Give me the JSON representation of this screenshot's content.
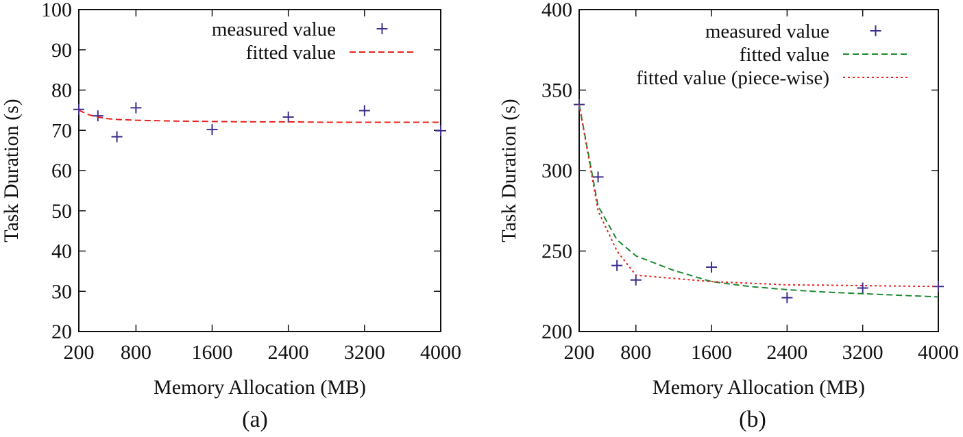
{
  "chart_data": [
    {
      "type": "line",
      "caption": "(a)",
      "xlabel": "Memory Allocation (MB)",
      "ylabel": "Task Duration (s)",
      "xlim": [
        200,
        4000
      ],
      "ylim": [
        20,
        100
      ],
      "xticks": [
        200,
        800,
        1600,
        2400,
        3200,
        4000
      ],
      "xtick_labels": [
        "200",
        "800",
        "1600",
        "2400",
        "3200",
        "4000"
      ],
      "yticks": [
        20,
        30,
        40,
        50,
        60,
        70,
        80,
        90,
        100
      ],
      "ytick_labels": [
        "20",
        "30",
        "40",
        "50",
        "60",
        "70",
        "80",
        "90",
        "100"
      ],
      "legend_position": "top-right",
      "series": [
        {
          "name": "measured value",
          "style": "points-plus",
          "color": "#3b2f8f",
          "x": [
            200,
            400,
            600,
            800,
            1600,
            2400,
            3200,
            4000
          ],
          "y": [
            75.2,
            73.6,
            68.4,
            75.6,
            70.2,
            73.3,
            74.9,
            69.9
          ]
        },
        {
          "name": "fitted value",
          "style": "dashed",
          "color": "#e8201c",
          "x": [
            200,
            300,
            400,
            500,
            600,
            800,
            1000,
            1200,
            1600,
            2000,
            2400,
            2800,
            3200,
            3600,
            4000
          ],
          "y": [
            75.0,
            73.9,
            73.3,
            72.9,
            72.7,
            72.5,
            72.4,
            72.3,
            72.2,
            72.1,
            72.1,
            72.0,
            72.0,
            72.0,
            72.0
          ]
        }
      ]
    },
    {
      "type": "line",
      "caption": "(b)",
      "xlabel": "Memory Allocation (MB)",
      "ylabel": "Task Duration (s)",
      "xlim": [
        200,
        4000
      ],
      "ylim": [
        200,
        400
      ],
      "xticks": [
        200,
        800,
        1600,
        2400,
        3200,
        4000
      ],
      "xtick_labels": [
        "200",
        "800",
        "1600",
        "2400",
        "3200",
        "4000"
      ],
      "yticks": [
        200,
        250,
        300,
        350,
        400
      ],
      "ytick_labels": [
        "200",
        "250",
        "300",
        "350",
        "400"
      ],
      "legend_position": "top-right",
      "series": [
        {
          "name": "measured value",
          "style": "points-plus",
          "color": "#3b2f8f",
          "x": [
            200,
            400,
            600,
            800,
            1600,
            2400,
            3200,
            4000
          ],
          "y": [
            341,
            296,
            241,
            232,
            240,
            221,
            227,
            228
          ]
        },
        {
          "name": "fitted value",
          "style": "dashed",
          "color": "#1a8a2e",
          "x": [
            200,
            400,
            600,
            800,
            1200,
            1600,
            2000,
            2400,
            2800,
            3200,
            3600,
            4000
          ],
          "y": [
            341,
            278,
            257,
            247,
            238,
            231,
            228,
            226,
            224.5,
            223.5,
            222.5,
            221.5
          ]
        },
        {
          "name": "fitted value (piece-wise)",
          "style": "dotted",
          "color": "#e8201c",
          "x": [
            200,
            400,
            600,
            800,
            1200,
            1600,
            2000,
            2400,
            2800,
            3200,
            3600,
            4000
          ],
          "y": [
            341,
            275,
            250,
            235,
            233,
            231,
            230,
            229,
            228.8,
            228.5,
            228.2,
            228
          ]
        }
      ]
    }
  ]
}
